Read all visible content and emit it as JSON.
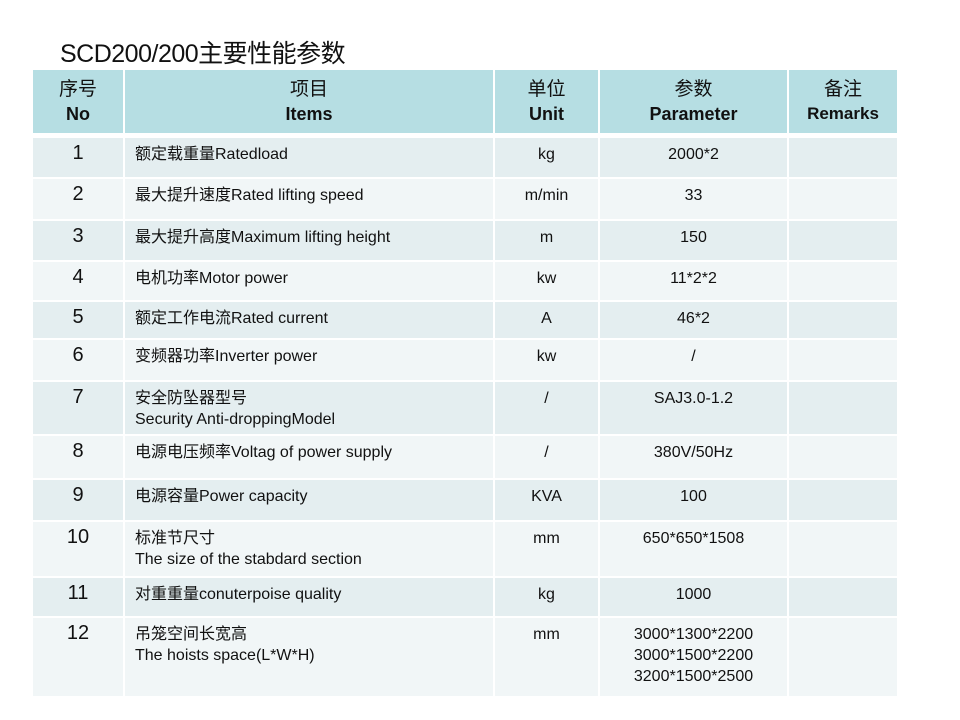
{
  "title": "SCD200/200主要性能参数",
  "colors": {
    "header_bg": "#b6dee3",
    "row_odd": "#e4eef0",
    "row_even": "#f1f6f7"
  },
  "header": [
    {
      "zh": "序号",
      "en": "No"
    },
    {
      "zh": "项目",
      "en": "Items"
    },
    {
      "zh": "单位",
      "en": "Unit"
    },
    {
      "zh": "参数",
      "en": "Parameter"
    },
    {
      "zh": "备注",
      "en": "Remarks"
    }
  ],
  "rows": [
    {
      "no": "1",
      "item": "额定载重量Ratedload",
      "item2": "",
      "unit": "kg",
      "param": [
        "2000*2"
      ],
      "remarks": ""
    },
    {
      "no": "2",
      "item": "最大提升速度Rated lifting speed",
      "item2": "",
      "unit": "m/min",
      "param": [
        "33"
      ],
      "remarks": ""
    },
    {
      "no": "3",
      "item": "最大提升高度Maximum lifting height",
      "item2": "",
      "unit": "m",
      "param": [
        "150"
      ],
      "remarks": ""
    },
    {
      "no": "4",
      "item": "电机功率Motor power",
      "item2": "",
      "unit": "kw",
      "param": [
        "11*2*2"
      ],
      "remarks": ""
    },
    {
      "no": "5",
      "item": "额定工作电流Rated current",
      "item2": "",
      "unit": "A",
      "param": [
        "46*2"
      ],
      "remarks": ""
    },
    {
      "no": "6",
      "item": "变频器功率Inverter power",
      "item2": "",
      "unit": "kw",
      "param": [
        "/"
      ],
      "remarks": ""
    },
    {
      "no": "7",
      "item": "安全防坠器型号",
      "item2": "Security Anti-droppingModel",
      "unit": "/",
      "param": [
        "SAJ3.0-1.2"
      ],
      "remarks": ""
    },
    {
      "no": "8",
      "item": "电源电压频率Voltag of power supply",
      "item2": "",
      "unit": "/",
      "param": [
        "380V/50Hz"
      ],
      "remarks": ""
    },
    {
      "no": "9",
      "item": "电源容量Power capacity",
      "item2": "",
      "unit": "KVA",
      "param": [
        "100"
      ],
      "remarks": ""
    },
    {
      "no": "10",
      "item": "标准节尺寸",
      "item2": "The size of the stabdard section",
      "unit": "mm",
      "param": [
        "650*650*1508"
      ],
      "remarks": ""
    },
    {
      "no": "11",
      "item": "对重重量conuterpoise quality",
      "item2": "",
      "unit": "kg",
      "param": [
        "1000"
      ],
      "remarks": ""
    },
    {
      "no": "12",
      "item": "吊笼空间长宽高",
      "item2": "The hoists space(L*W*H)",
      "unit": "mm",
      "param": [
        "3000*1300*2200",
        "3000*1500*2200",
        "3200*1500*2500"
      ],
      "remarks": ""
    }
  ]
}
